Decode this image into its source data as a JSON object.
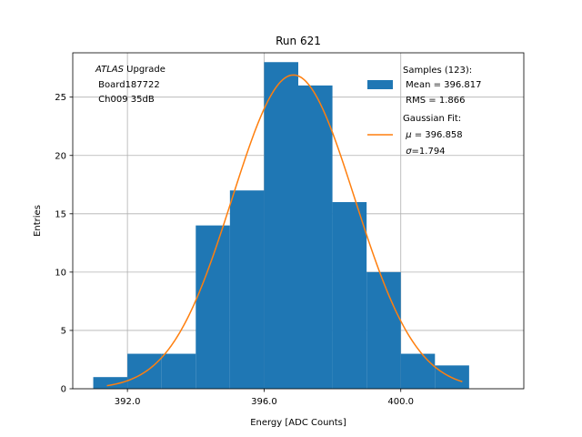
{
  "chart_data": {
    "type": "bar",
    "title": "Run 621",
    "xlabel": "Energy [ADC Counts]",
    "ylabel": "Entries",
    "xlim": [
      390.4,
      403.6
    ],
    "ylim": [
      0,
      28.8
    ],
    "grid": true,
    "x_ticks": [
      392.0,
      396.0,
      400.0
    ],
    "x_tick_labels": [
      "392.0",
      "396.0",
      "400.0"
    ],
    "y_ticks": [
      0,
      5,
      10,
      15,
      20,
      25
    ],
    "y_tick_labels": [
      "0",
      "5",
      "10",
      "15",
      "20",
      "25"
    ],
    "histogram": {
      "name": "Samples",
      "color": "#1f77b4",
      "bins": [
        {
          "x0": 391.0,
          "x1": 392.0,
          "count": 1
        },
        {
          "x0": 392.0,
          "x1": 393.0,
          "count": 3
        },
        {
          "x0": 393.0,
          "x1": 394.0,
          "count": 3
        },
        {
          "x0": 394.0,
          "x1": 395.0,
          "count": 14
        },
        {
          "x0": 395.0,
          "x1": 396.0,
          "count": 17
        },
        {
          "x0": 396.0,
          "x1": 397.0,
          "count": 28
        },
        {
          "x0": 397.0,
          "x1": 398.0,
          "count": 26
        },
        {
          "x0": 398.0,
          "x1": 399.0,
          "count": 16
        },
        {
          "x0": 399.0,
          "x1": 400.0,
          "count": 10
        },
        {
          "x0": 400.0,
          "x1": 401.0,
          "count": 3
        },
        {
          "x0": 401.0,
          "x1": 402.0,
          "count": 2
        }
      ]
    },
    "fit": {
      "name": "Gaussian Fit",
      "color": "#ff7f0e",
      "mu": 396.858,
      "sigma": 1.794,
      "amplitude": 26.9,
      "x_range": [
        391.4,
        401.8
      ]
    },
    "annotation": {
      "line1_italic": "ATLAS",
      "line1_rest": " Upgrade",
      "line2": " Board187722",
      "line3": " Ch009 35dB"
    },
    "legend": {
      "position": "top-right",
      "samples_line1": "Samples (123):",
      "samples_line2": " Mean = 396.817",
      "samples_line3": " RMS = 1.866",
      "fit_line1": "Gaussian Fit:",
      "fit_mu_symbol": "μ",
      "fit_mu_value": " = 396.858",
      "fit_sigma_symbol": "σ",
      "fit_sigma_value": "=1.794"
    }
  }
}
